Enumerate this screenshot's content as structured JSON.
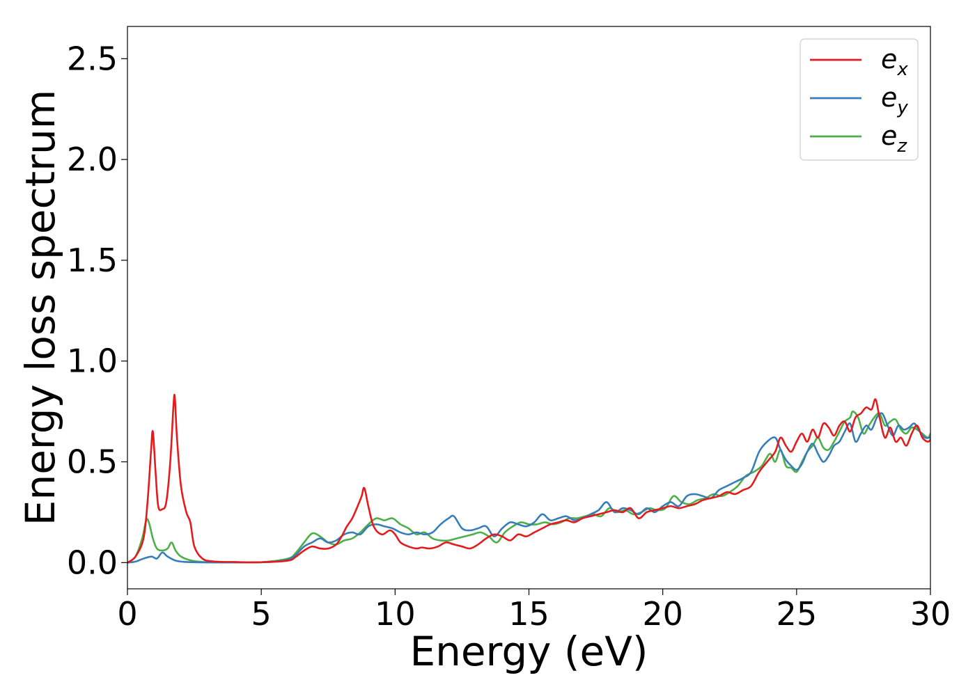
{
  "chart_data": {
    "type": "line",
    "title": "",
    "xlabel": "Energy (eV)",
    "ylabel": "Energy loss spectrum",
    "xlim": [
      0,
      30
    ],
    "ylim": [
      -0.13,
      2.66
    ],
    "xticks": [
      0,
      5,
      10,
      15,
      20,
      25,
      30
    ],
    "yticks": [
      0.0,
      0.5,
      1.0,
      1.5,
      2.0,
      2.5
    ],
    "xtick_labels": [
      "0",
      "5",
      "10",
      "15",
      "20",
      "25",
      "30"
    ],
    "ytick_labels": [
      "0.0",
      "0.5",
      "1.0",
      "1.5",
      "2.0",
      "2.5"
    ],
    "grid": false,
    "legend_position": "top-right",
    "series": [
      {
        "name": "e_x",
        "legend_base": "e",
        "legend_sub": "x",
        "color": "#e41a1c",
        "x": [
          0,
          0.3,
          0.6,
          0.75,
          0.88,
          0.95,
          1.05,
          1.15,
          1.3,
          1.45,
          1.6,
          1.72,
          1.77,
          1.85,
          2.0,
          2.2,
          2.35,
          2.5,
          2.8,
          3.2,
          4,
          5,
          6,
          6.3,
          6.6,
          6.9,
          7.2,
          7.5,
          7.8,
          8.0,
          8.2,
          8.4,
          8.6,
          8.75,
          8.85,
          9.0,
          9.2,
          9.5,
          9.8,
          10.0,
          10.2,
          10.5,
          10.8,
          11.0,
          11.3,
          11.6,
          11.9,
          12.2,
          12.5,
          12.8,
          13.1,
          13.4,
          13.7,
          14.0,
          14.3,
          14.6,
          14.9,
          15.2,
          15.5,
          15.8,
          16.1,
          16.4,
          16.7,
          17.0,
          17.3,
          17.6,
          17.9,
          18.2,
          18.5,
          18.8,
          19.1,
          19.4,
          19.7,
          20.0,
          20.3,
          20.6,
          20.9,
          21.2,
          21.5,
          21.8,
          22.1,
          22.4,
          22.7,
          23.0,
          23.3,
          23.6,
          23.9,
          24.2,
          24.4,
          24.6,
          24.8,
          25.0,
          25.2,
          25.4,
          25.6,
          25.8,
          26.0,
          26.2,
          26.4,
          26.6,
          26.8,
          27.0,
          27.2,
          27.4,
          27.6,
          27.8,
          27.95,
          28.1,
          28.3,
          28.5,
          28.7,
          28.9,
          29.1,
          29.3,
          29.5,
          29.7,
          29.9,
          30.0
        ],
        "y": [
          0.0,
          0.03,
          0.12,
          0.3,
          0.55,
          0.65,
          0.45,
          0.28,
          0.265,
          0.3,
          0.5,
          0.78,
          0.82,
          0.62,
          0.38,
          0.25,
          0.2,
          0.08,
          0.02,
          0.006,
          0.003,
          0.002,
          0.01,
          0.03,
          0.06,
          0.08,
          0.07,
          0.07,
          0.09,
          0.13,
          0.18,
          0.22,
          0.28,
          0.33,
          0.37,
          0.28,
          0.18,
          0.14,
          0.16,
          0.14,
          0.1,
          0.08,
          0.07,
          0.075,
          0.07,
          0.08,
          0.1,
          0.09,
          0.08,
          0.07,
          0.09,
          0.12,
          0.14,
          0.13,
          0.11,
          0.14,
          0.13,
          0.15,
          0.17,
          0.19,
          0.2,
          0.21,
          0.2,
          0.22,
          0.23,
          0.24,
          0.25,
          0.26,
          0.25,
          0.27,
          0.22,
          0.25,
          0.26,
          0.27,
          0.28,
          0.27,
          0.28,
          0.29,
          0.31,
          0.32,
          0.33,
          0.35,
          0.34,
          0.36,
          0.38,
          0.45,
          0.5,
          0.55,
          0.62,
          0.58,
          0.55,
          0.6,
          0.64,
          0.6,
          0.66,
          0.62,
          0.69,
          0.67,
          0.63,
          0.68,
          0.7,
          0.65,
          0.72,
          0.74,
          0.77,
          0.76,
          0.81,
          0.72,
          0.62,
          0.67,
          0.6,
          0.62,
          0.58,
          0.64,
          0.68,
          0.62,
          0.6,
          0.61
        ]
      },
      {
        "name": "e_y",
        "legend_base": "e",
        "legend_sub": "y",
        "color": "#377eb8",
        "x": [
          0,
          0.3,
          0.6,
          0.9,
          1.1,
          1.3,
          1.5,
          1.8,
          2.2,
          3,
          4,
          5,
          5.5,
          6.0,
          6.3,
          6.6,
          6.9,
          7.2,
          7.5,
          7.8,
          8.1,
          8.4,
          8.7,
          9.0,
          9.3,
          9.6,
          9.9,
          10.2,
          10.5,
          10.8,
          11.1,
          11.4,
          11.7,
          12.0,
          12.2,
          12.5,
          12.8,
          13.1,
          13.4,
          13.7,
          14.0,
          14.3,
          14.6,
          14.9,
          15.2,
          15.5,
          15.8,
          16.1,
          16.4,
          16.7,
          17.0,
          17.3,
          17.6,
          17.9,
          18.2,
          18.5,
          18.8,
          19.1,
          19.4,
          19.7,
          20.0,
          20.3,
          20.6,
          20.9,
          21.2,
          21.5,
          21.8,
          22.1,
          22.4,
          22.7,
          23.0,
          23.3,
          23.6,
          23.9,
          24.2,
          24.4,
          24.6,
          24.8,
          25.0,
          25.2,
          25.4,
          25.6,
          25.8,
          26.0,
          26.2,
          26.4,
          26.6,
          26.8,
          27.0,
          27.2,
          27.4,
          27.6,
          27.8,
          28.0,
          28.2,
          28.4,
          28.6,
          28.8,
          29.0,
          29.2,
          29.4,
          29.6,
          29.8,
          30.0
        ],
        "y": [
          0.0,
          0.005,
          0.02,
          0.03,
          0.02,
          0.05,
          0.03,
          0.01,
          0.003,
          0.001,
          0.001,
          0.002,
          0.005,
          0.015,
          0.04,
          0.08,
          0.1,
          0.12,
          0.1,
          0.11,
          0.14,
          0.15,
          0.14,
          0.18,
          0.19,
          0.18,
          0.17,
          0.15,
          0.14,
          0.15,
          0.14,
          0.15,
          0.19,
          0.22,
          0.23,
          0.17,
          0.16,
          0.17,
          0.18,
          0.13,
          0.17,
          0.2,
          0.19,
          0.18,
          0.2,
          0.24,
          0.21,
          0.22,
          0.23,
          0.21,
          0.22,
          0.24,
          0.26,
          0.3,
          0.25,
          0.27,
          0.26,
          0.24,
          0.27,
          0.25,
          0.28,
          0.3,
          0.28,
          0.33,
          0.34,
          0.33,
          0.32,
          0.36,
          0.38,
          0.4,
          0.42,
          0.45,
          0.55,
          0.6,
          0.62,
          0.56,
          0.51,
          0.48,
          0.46,
          0.49,
          0.55,
          0.59,
          0.54,
          0.5,
          0.53,
          0.58,
          0.6,
          0.65,
          0.69,
          0.6,
          0.64,
          0.68,
          0.66,
          0.72,
          0.74,
          0.68,
          0.63,
          0.68,
          0.66,
          0.67,
          0.69,
          0.65,
          0.62,
          0.62
        ]
      },
      {
        "name": "e_z",
        "legend_base": "e",
        "legend_sub": "z",
        "color": "#4daf4a",
        "x": [
          0,
          0.3,
          0.55,
          0.7,
          0.8,
          0.95,
          1.1,
          1.3,
          1.5,
          1.65,
          1.8,
          2.0,
          2.4,
          3,
          4,
          5,
          6,
          6.3,
          6.6,
          6.9,
          7.2,
          7.5,
          7.8,
          8.1,
          8.4,
          8.7,
          9.0,
          9.3,
          9.6,
          9.9,
          10.2,
          10.5,
          10.8,
          11.1,
          11.4,
          11.7,
          12.0,
          12.3,
          12.6,
          12.9,
          13.2,
          13.5,
          13.8,
          14.1,
          14.4,
          14.7,
          15.0,
          15.3,
          15.6,
          15.9,
          16.2,
          16.5,
          16.8,
          17.1,
          17.4,
          17.7,
          18.0,
          18.3,
          18.6,
          18.9,
          19.2,
          19.5,
          19.8,
          20.1,
          20.4,
          20.7,
          21.0,
          21.3,
          21.6,
          21.9,
          22.2,
          22.5,
          22.8,
          23.1,
          23.4,
          23.7,
          24.0,
          24.2,
          24.4,
          24.6,
          24.8,
          25.0,
          25.2,
          25.4,
          25.6,
          25.8,
          26.0,
          26.2,
          26.4,
          26.6,
          26.8,
          27.0,
          27.1,
          27.3,
          27.5,
          27.7,
          27.9,
          28.1,
          28.3,
          28.5,
          28.7,
          28.9,
          29.1,
          29.3,
          29.5,
          29.7,
          29.9,
          30.0
        ],
        "y": [
          0.0,
          0.03,
          0.12,
          0.21,
          0.2,
          0.12,
          0.07,
          0.06,
          0.07,
          0.1,
          0.06,
          0.03,
          0.01,
          0.002,
          0.001,
          0.002,
          0.02,
          0.05,
          0.1,
          0.145,
          0.13,
          0.1,
          0.09,
          0.11,
          0.12,
          0.15,
          0.19,
          0.22,
          0.21,
          0.22,
          0.19,
          0.17,
          0.14,
          0.15,
          0.12,
          0.11,
          0.11,
          0.12,
          0.13,
          0.14,
          0.15,
          0.13,
          0.1,
          0.15,
          0.18,
          0.2,
          0.19,
          0.19,
          0.2,
          0.19,
          0.2,
          0.22,
          0.22,
          0.23,
          0.24,
          0.23,
          0.27,
          0.25,
          0.26,
          0.24,
          0.25,
          0.27,
          0.26,
          0.27,
          0.33,
          0.3,
          0.29,
          0.31,
          0.32,
          0.34,
          0.33,
          0.35,
          0.38,
          0.43,
          0.45,
          0.48,
          0.54,
          0.5,
          0.56,
          0.48,
          0.47,
          0.45,
          0.5,
          0.55,
          0.58,
          0.62,
          0.57,
          0.56,
          0.6,
          0.65,
          0.7,
          0.72,
          0.75,
          0.72,
          0.64,
          0.68,
          0.72,
          0.74,
          0.68,
          0.7,
          0.71,
          0.66,
          0.64,
          0.67,
          0.66,
          0.64,
          0.62,
          0.64
        ]
      }
    ]
  }
}
